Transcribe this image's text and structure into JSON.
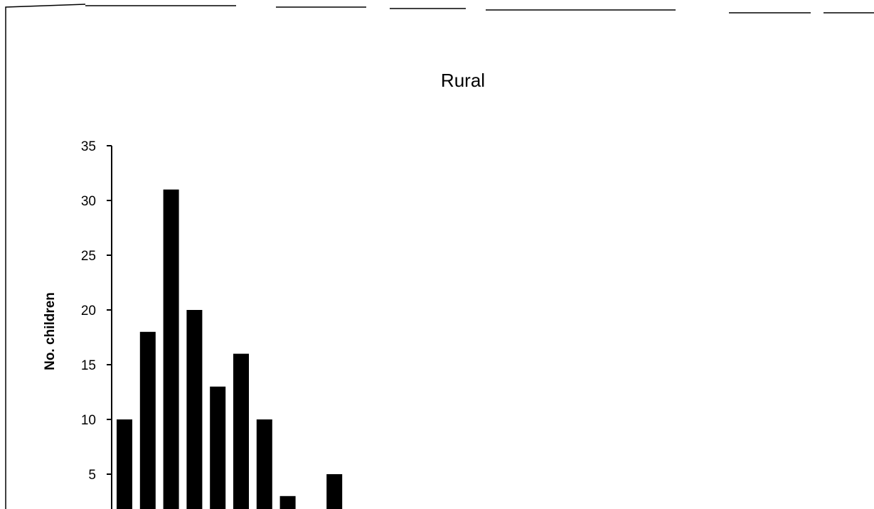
{
  "chart_data": {
    "type": "bar",
    "title": "Rural",
    "ylabel": "No. children",
    "xlabel": "",
    "ylim": [
      0,
      35
    ],
    "yticks": [
      5,
      10,
      15,
      20,
      25,
      30,
      35
    ],
    "values": [
      10,
      18,
      31,
      20,
      13,
      16,
      10,
      3,
      0,
      5,
      0,
      0,
      0
    ],
    "grid": false,
    "legend": "none",
    "colors": {
      "bars": "#000000",
      "background": "#ffffff"
    }
  }
}
